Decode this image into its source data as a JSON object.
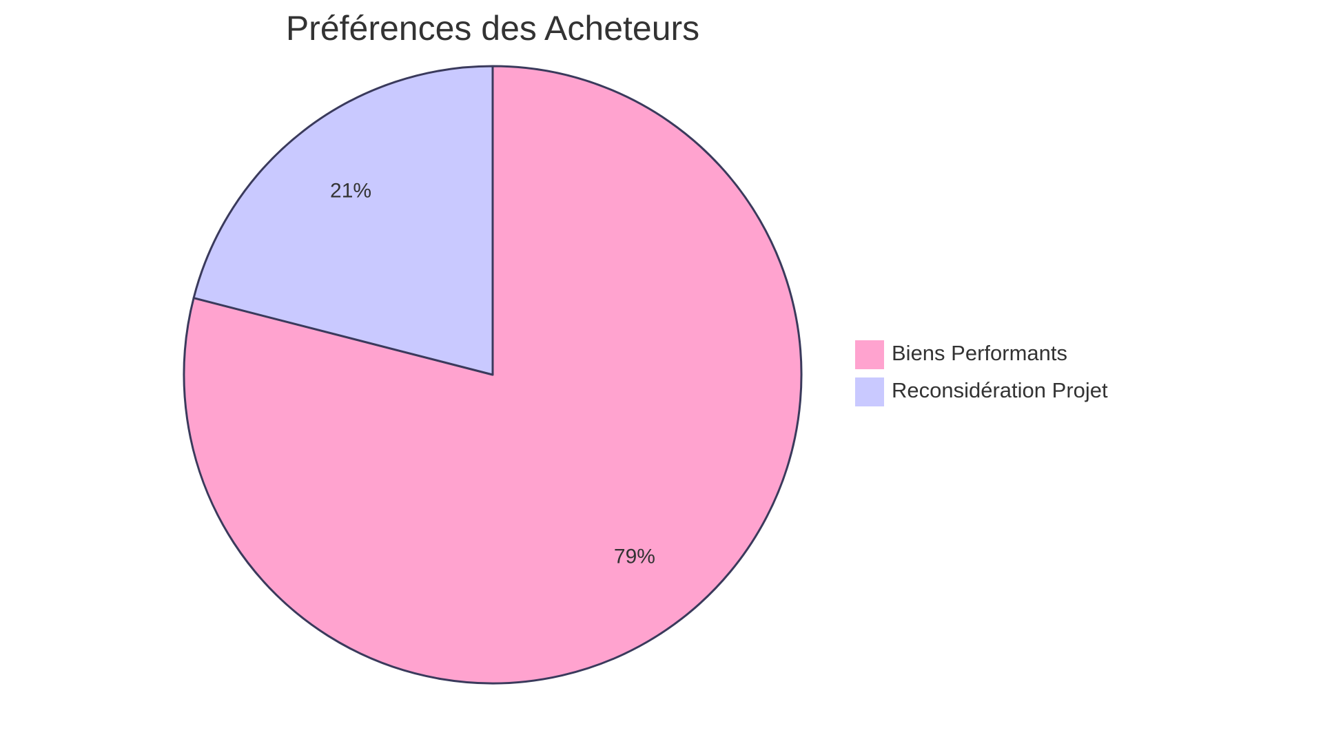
{
  "chart_data": {
    "type": "pie",
    "title": "Préférences des Acheteurs",
    "categories": [
      "Biens Performants",
      "Reconsidération Projet"
    ],
    "values": [
      79,
      21
    ],
    "value_labels": [
      "79%",
      "21%"
    ],
    "colors": [
      "#FFA3CF",
      "#C9C9FF"
    ],
    "slice_stroke_color": "#3A3A5C",
    "text_color": "#333333",
    "legend_placement": "right"
  }
}
